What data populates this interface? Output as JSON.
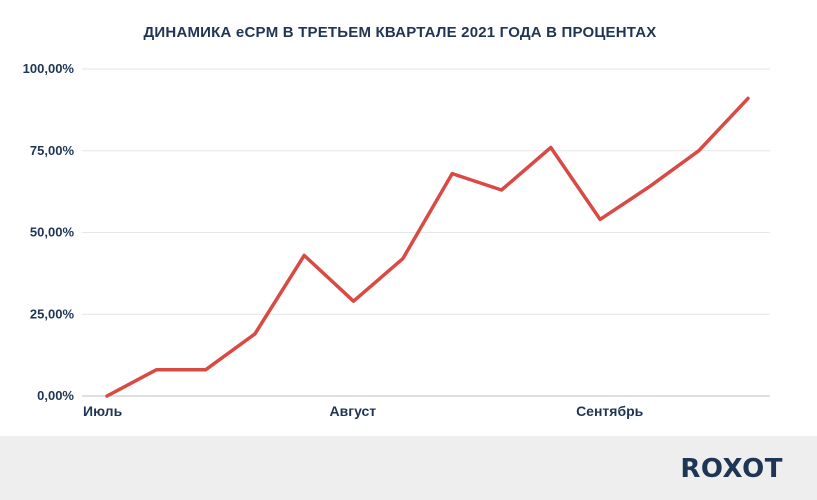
{
  "chart_data": {
    "type": "line",
    "title": "ДИНАМИКА eCPM В ТРЕТЬЕМ КВАРТАЛЕ 2021 ГОДА В ПРОЦЕНТАХ",
    "xlabel": "",
    "ylabel": "",
    "ylim": [
      0,
      100
    ],
    "yticks": [
      "0,00%",
      "25,00%",
      "50,00%",
      "75,00%",
      "100,00%"
    ],
    "ytick_values": [
      0,
      25,
      50,
      75,
      100
    ],
    "xtick_labels": [
      {
        "label": "Июль",
        "index": 0
      },
      {
        "label": "Август",
        "index": 5
      },
      {
        "label": "Сентябрь",
        "index": 10
      }
    ],
    "grid": true,
    "line_color": "#d94a45",
    "series": [
      {
        "values": [
          0,
          8,
          8,
          19,
          43,
          29,
          42,
          68,
          63,
          76,
          54,
          64,
          75,
          91
        ]
      }
    ]
  },
  "footer": {
    "logo_text": "ROXOT"
  }
}
